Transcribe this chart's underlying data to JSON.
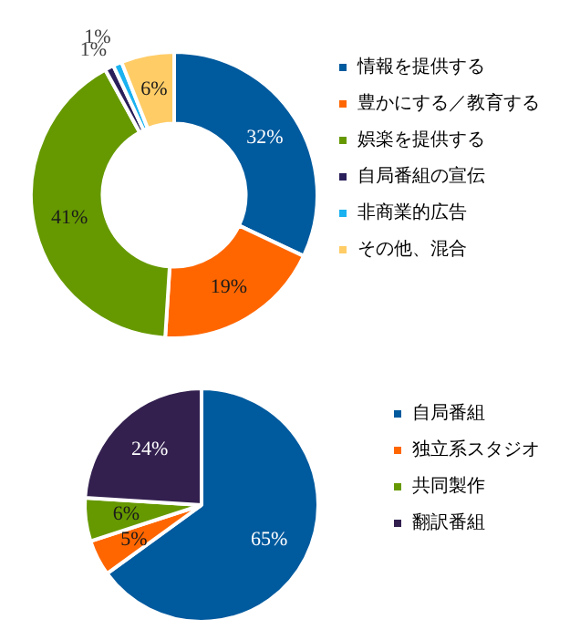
{
  "chart_data": [
    {
      "type": "donut",
      "categories": [
        "情報を提供する",
        "豊かにする／教育する",
        "娯楽を提供する",
        "自局番組の宣伝",
        "非商業的広告",
        "その他、混合"
      ],
      "values": [
        32,
        19,
        41,
        1,
        1,
        6
      ],
      "colors": [
        "#005a9e",
        "#ff6600",
        "#669900",
        "#2a1f5a",
        "#1ab2f0",
        "#ffcc66"
      ],
      "value_labels": [
        "32%",
        "19%",
        "41%",
        "1%",
        "1%",
        "6%"
      ],
      "legend": "right"
    },
    {
      "type": "pie",
      "categories": [
        "自局番組",
        "独立系スタジオ",
        "共同製作",
        "翻訳番組"
      ],
      "values": [
        65,
        5,
        6,
        24
      ],
      "colors": [
        "#005a9e",
        "#ff6600",
        "#669900",
        "#33204f"
      ],
      "value_labels": [
        "65%",
        "5%",
        "6%",
        "24%"
      ],
      "legend": "right"
    }
  ]
}
